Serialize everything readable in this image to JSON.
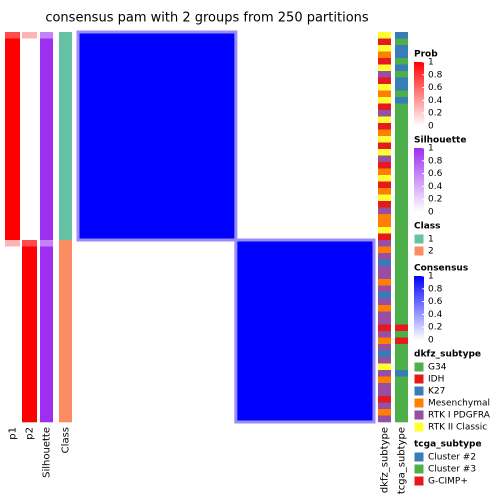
{
  "chart_data": {
    "type": "heatmap",
    "title": "consensus pam with 2 groups from 250 partitions",
    "annotations": [
      {
        "name": "p1",
        "legend": 0,
        "values": [
          0.7,
          1,
          1,
          1,
          1,
          1,
          1,
          1,
          1,
          1,
          1,
          1,
          1,
          1,
          1,
          1,
          1,
          1,
          1,
          1,
          1,
          1,
          1,
          1,
          1,
          1,
          1,
          1,
          1,
          1,
          1,
          1,
          0.3,
          0,
          0,
          0,
          0,
          0,
          0,
          0,
          0,
          0,
          0,
          0,
          0,
          0,
          0,
          0,
          0,
          0,
          0,
          0,
          0,
          0,
          0,
          0,
          0,
          0,
          0,
          0
        ]
      },
      {
        "name": "p2",
        "legend": 0,
        "values": [
          0.3,
          0,
          0,
          0,
          0,
          0,
          0,
          0,
          0,
          0,
          0,
          0,
          0,
          0,
          0,
          0,
          0,
          0,
          0,
          0,
          0,
          0,
          0,
          0,
          0,
          0,
          0,
          0,
          0,
          0,
          0,
          0,
          0.7,
          1,
          1,
          1,
          1,
          1,
          1,
          1,
          1,
          1,
          1,
          1,
          1,
          1,
          1,
          1,
          1,
          1,
          1,
          1,
          1,
          1,
          1,
          1,
          1,
          1,
          1,
          1
        ]
      },
      {
        "name": "Silhouette",
        "legend": 1,
        "values": [
          0.6,
          1,
          1,
          1,
          1,
          1,
          1,
          1,
          1,
          1,
          1,
          1,
          1,
          1,
          1,
          1,
          1,
          1,
          1,
          1,
          1,
          1,
          1,
          1,
          1,
          1,
          1,
          1,
          1,
          1,
          1,
          1,
          0.6,
          1,
          1,
          1,
          1,
          1,
          1,
          1,
          1,
          1,
          1,
          1,
          1,
          1,
          1,
          1,
          1,
          1,
          1,
          1,
          1,
          1,
          1,
          1,
          1,
          1,
          1,
          1
        ]
      },
      {
        "name": "Class",
        "legend": 2,
        "values": [
          0,
          0,
          0,
          0,
          0,
          0,
          0,
          0,
          0,
          0,
          0,
          0,
          0,
          0,
          0,
          0,
          0,
          0,
          0,
          0,
          0,
          0,
          0,
          0,
          0,
          0,
          0,
          0,
          0,
          0,
          0,
          0,
          1,
          1,
          1,
          1,
          1,
          1,
          1,
          1,
          1,
          1,
          1,
          1,
          1,
          1,
          1,
          1,
          1,
          1,
          1,
          1,
          1,
          1,
          1,
          1,
          1,
          1,
          1,
          1
        ]
      }
    ],
    "right_annotations": [
      {
        "name": "dkfz_subtype",
        "legend": 4,
        "values": [
          5,
          1,
          5,
          3,
          1,
          5,
          4,
          1,
          5,
          3,
          5,
          1,
          4,
          5,
          1,
          3,
          5,
          1,
          5,
          4,
          1,
          3,
          5,
          1,
          3,
          5,
          1,
          4,
          3,
          3,
          5,
          1,
          4,
          3,
          4,
          2,
          4,
          4,
          3,
          4,
          2,
          4,
          3,
          4,
          4,
          1,
          4,
          3,
          4,
          2,
          4,
          5,
          4,
          3,
          4,
          4,
          1,
          4,
          3,
          4
        ]
      },
      {
        "name": "tcga_subtype",
        "legend": 5,
        "values": [
          0,
          1,
          0,
          0,
          1,
          0,
          1,
          0,
          0,
          1,
          0,
          1,
          1,
          1,
          1,
          1,
          1,
          1,
          1,
          1,
          1,
          1,
          1,
          1,
          1,
          1,
          1,
          1,
          1,
          1,
          1,
          1,
          1,
          1,
          1,
          1,
          1,
          1,
          1,
          1,
          1,
          1,
          1,
          1,
          1,
          2,
          1,
          2,
          1,
          1,
          1,
          1,
          0,
          1,
          1,
          1,
          1,
          1,
          1,
          1
        ]
      }
    ],
    "consensus": [
      [
        1,
        0
      ],
      [
        0,
        1
      ]
    ],
    "legends": [
      {
        "title": "Prob",
        "colors": [
          "#FFFFFF",
          "#FF0000"
        ],
        "lim": [
          0,
          1
        ],
        "ticks": [
          0,
          0.2,
          0.4,
          0.6,
          0.8,
          1
        ]
      },
      {
        "title": "Silhouette",
        "colors": [
          "#FFFFFF",
          "#9E2EF0"
        ],
        "lim": [
          0,
          1
        ],
        "ticks": [
          0,
          0.2,
          0.4,
          0.6,
          0.8,
          1
        ]
      },
      {
        "title": "Class",
        "categories": [
          "1",
          "2"
        ],
        "colors": [
          "#66C2A5",
          "#FC8D62"
        ]
      },
      {
        "title": "Consensus",
        "colors": [
          "#FFFFFF",
          "#0000FF"
        ],
        "lim": [
          0,
          1
        ],
        "ticks": [
          0,
          0.2,
          0.4,
          0.6,
          0.8,
          1
        ]
      },
      {
        "title": "dkfz_subtype",
        "categories": [
          "G34",
          "IDH",
          "K27",
          "Mesenchymal",
          "RTK I PDGFRA",
          "RTK II Classic"
        ],
        "colors": [
          "#4DAF4A",
          "#E41A1C",
          "#377EB8",
          "#FF7F00",
          "#984EA3",
          "#FFFF33"
        ]
      },
      {
        "title": "tcga_subtype",
        "categories": [
          "Cluster #2",
          "Cluster #3",
          "G-CIMP+"
        ],
        "colors": [
          "#377EB8",
          "#4DAF4A",
          "#E41A1C"
        ]
      }
    ]
  }
}
